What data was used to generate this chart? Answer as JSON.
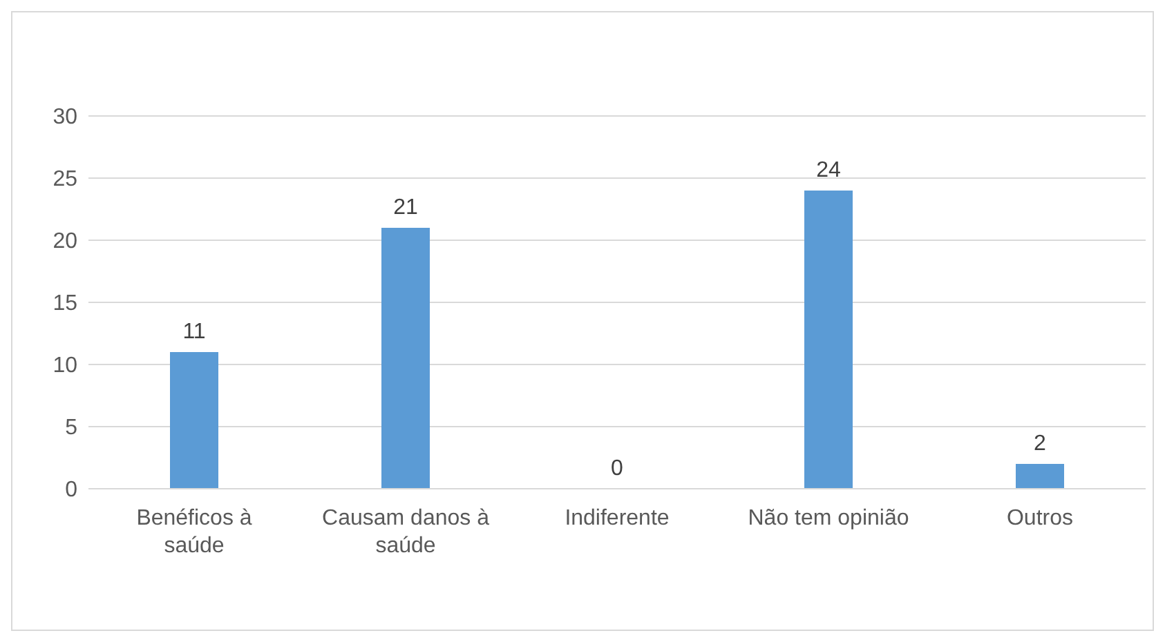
{
  "chart_data": {
    "type": "bar",
    "categories": [
      "Benéficos à saúde",
      "Causam danos à saúde",
      "Indiferente",
      "Não tem opinião",
      "Outros"
    ],
    "values": [
      11,
      21,
      0,
      24,
      2
    ],
    "color": "#5b9bd5",
    "ylim": [
      0,
      30
    ],
    "yticks": [
      0,
      5,
      10,
      15,
      20,
      25,
      30
    ],
    "grid": "y",
    "data_labels": true
  }
}
